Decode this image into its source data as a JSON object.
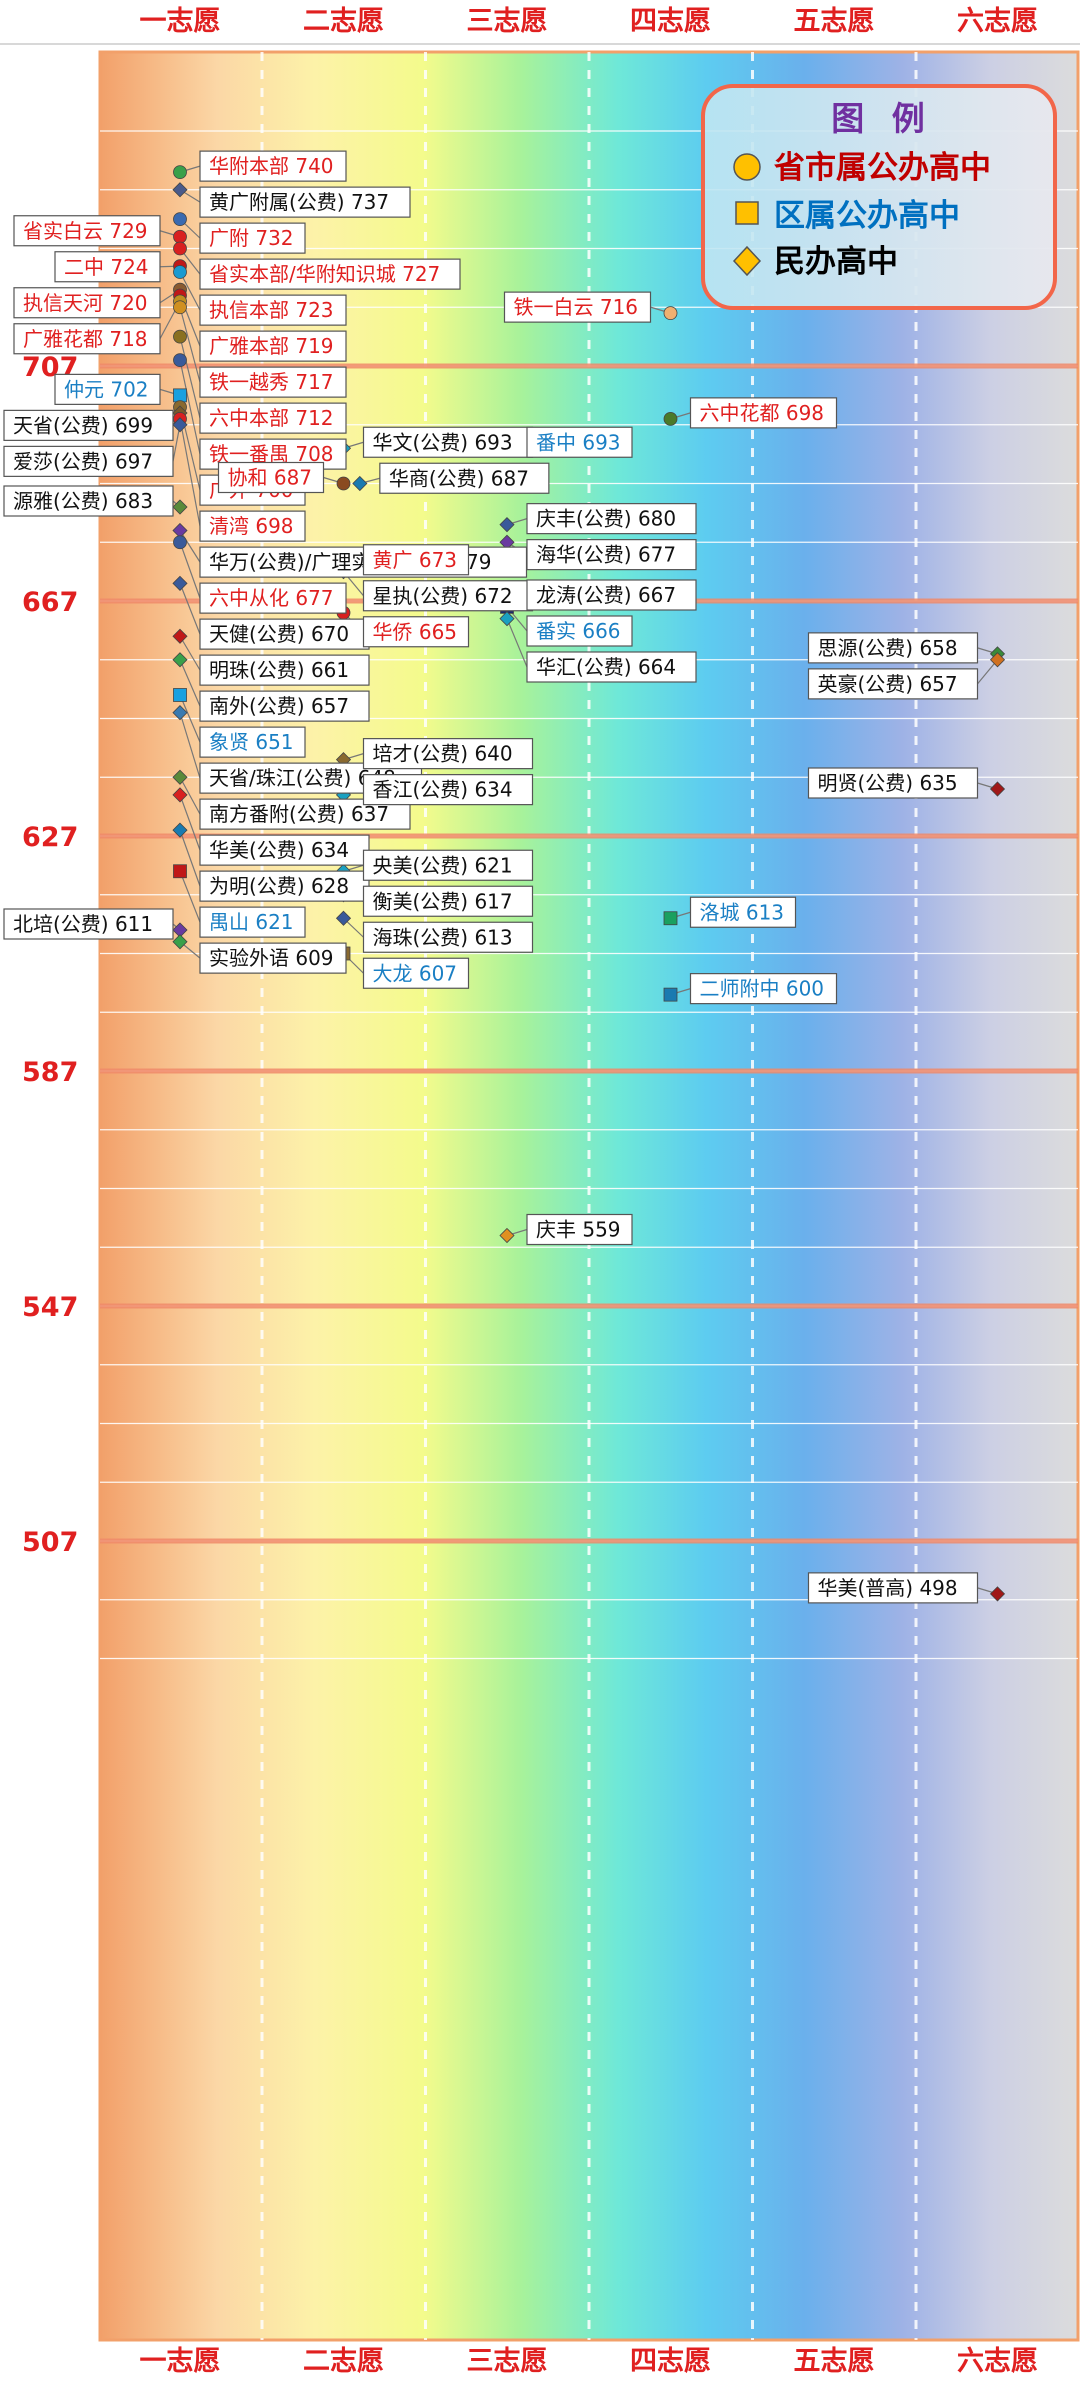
{
  "chart_data": {
    "type": "scatter",
    "title": "",
    "xlabel": "",
    "ylabel": "",
    "x_categories": [
      "一志愿",
      "二志愿",
      "三志愿",
      "四志愿",
      "五志愿",
      "六志愿"
    ],
    "y_ticks": [
      707,
      667,
      627,
      587,
      547,
      507
    ],
    "ylim": [
      480,
      750
    ],
    "grid": true,
    "legend": {
      "title": "图 例",
      "placement": "top-right",
      "entries": [
        {
          "label": "省市属公办高中",
          "shape": "circle",
          "color": "#c00000"
        },
        {
          "label": "区属公办高中",
          "shape": "square",
          "color": "#0070c0"
        },
        {
          "label": "民办高中",
          "shape": "diamond",
          "color": "#000000"
        }
      ]
    },
    "category_colors": {
      "circle": "#e02020",
      "square": "#1a7fc4",
      "diamond": "#111111"
    },
    "points": [
      {
        "name": "华附本部",
        "score": 740,
        "x": 1,
        "category": "circle",
        "label": "华附本部 740",
        "marker_color": "#3aa04a",
        "side": "right"
      },
      {
        "name": "黄广附属(公费)",
        "score": 737,
        "x": 1,
        "category": "diamond",
        "label": "黄广附属(公费) 737",
        "marker_color": "#4a5a8a",
        "side": "right"
      },
      {
        "name": "省实白云",
        "score": 729,
        "x": 1,
        "category": "circle",
        "label": "省实白云 729",
        "marker_color": "#d82020",
        "side": "left"
      },
      {
        "name": "广附",
        "score": 732,
        "x": 1,
        "category": "circle",
        "label": "广附 732",
        "marker_color": "#3a6ab0",
        "side": "right"
      },
      {
        "name": "省实本部/华附知识城",
        "score": 727,
        "x": 1,
        "category": "circle",
        "label": "省实本部/华附知识城 727",
        "marker_color": "#d82020",
        "side": "right"
      },
      {
        "name": "二中",
        "score": 724,
        "x": 1,
        "category": "circle",
        "label": "二中 724",
        "marker_color": "#c01818",
        "side": "left"
      },
      {
        "name": "执信本部",
        "score": 723,
        "x": 1,
        "category": "circle",
        "label": "执信本部 723",
        "marker_color": "#1a9ad0",
        "side": "right"
      },
      {
        "name": "执信天河",
        "score": 720,
        "x": 1,
        "category": "circle",
        "label": "执信天河 720",
        "marker_color": "#8a5a30",
        "side": "left"
      },
      {
        "name": "广雅本部",
        "score": 719,
        "x": 1,
        "category": "circle",
        "label": "广雅本部 719",
        "marker_color": "#c01818",
        "side": "right"
      },
      {
        "name": "广雅花都",
        "score": 718,
        "x": 1,
        "category": "circle",
        "label": "广雅花都 718",
        "marker_color": "#c09020",
        "side": "left"
      },
      {
        "name": "铁一越秀",
        "score": 717,
        "x": 1,
        "category": "circle",
        "label": "铁一越秀 717",
        "marker_color": "#d09020",
        "side": "right"
      },
      {
        "name": "铁一白云",
        "score": 716,
        "x": 4,
        "category": "circle",
        "label": "铁一白云 716",
        "marker_color": "#f0b070",
        "side": "left"
      },
      {
        "name": "六中本部",
        "score": 712,
        "x": 1,
        "category": "circle",
        "label": "六中本部 712",
        "marker_color": "#8a7020",
        "side": "right"
      },
      {
        "name": "铁一番禺",
        "score": 708,
        "x": 1,
        "category": "circle",
        "label": "铁一番禺 708",
        "marker_color": "#3a5a9a",
        "side": "right"
      },
      {
        "name": "仲元",
        "score": 702,
        "x": 1,
        "category": "square",
        "label": "仲元 702",
        "marker_color": "#1aa0e0",
        "side": "left"
      },
      {
        "name": "广外",
        "score": 700,
        "x": 1,
        "category": "circle",
        "label": "广外 700",
        "marker_color": "#8a6a30",
        "side": "right"
      },
      {
        "name": "天省(公费)",
        "score": 699,
        "x": 1,
        "category": "diamond",
        "label": "天省(公费) 699",
        "marker_color": "#7a5a2a",
        "side": "left"
      },
      {
        "name": "清湾",
        "score": 698,
        "x": 1,
        "category": "circle",
        "label": "清湾 698",
        "marker_color": "#d82020",
        "side": "right"
      },
      {
        "name": "六中花都",
        "score": 698,
        "x": 4,
        "category": "circle",
        "label": "六中花都 698",
        "marker_color": "#4a7a2a",
        "side": "right"
      },
      {
        "name": "爱莎(公费)",
        "score": 697,
        "x": 1,
        "category": "diamond",
        "label": "爱莎(公费) 697",
        "marker_color": "#3a5a9a",
        "side": "left"
      },
      {
        "name": "华文(公费)",
        "score": 693,
        "x": 2,
        "category": "diamond",
        "label": "华文(公费) 693",
        "marker_color": "#1aa0c0",
        "side": "right"
      },
      {
        "name": "番中",
        "score": 693,
        "x": 3,
        "category": "square",
        "label": "番中 693",
        "marker_color": "#1a2a6a",
        "side": "right"
      },
      {
        "name": "协和",
        "score": 687,
        "x": 2,
        "category": "circle",
        "label": "协和 687",
        "marker_color": "#8a4a20",
        "side": "left"
      },
      {
        "name": "华商(公费)",
        "score": 687,
        "x": 2.1,
        "category": "diamond",
        "label": "华商(公费) 687",
        "marker_color": "#1a7ab0",
        "side": "right"
      },
      {
        "name": "源雅(公费)",
        "score": 683,
        "x": 1,
        "category": "diamond",
        "label": "源雅(公费) 683",
        "marker_color": "#5a8a3a",
        "side": "left"
      },
      {
        "name": "庆丰(公费)",
        "score": 680,
        "x": 3,
        "category": "diamond",
        "label": "庆丰(公费) 680",
        "marker_color": "#3a5a9a",
        "side": "right"
      },
      {
        "name": "华万(公费)/广理实验(公费)",
        "score": 679,
        "x": 1,
        "category": "diamond",
        "label": "华万(公费)/广理实验(公费) 679",
        "marker_color": "#6a3aa0",
        "side": "right"
      },
      {
        "name": "六中从化",
        "score": 677,
        "x": 1,
        "category": "circle",
        "label": "六中从化 677",
        "marker_color": "#3a5a9a",
        "side": "right"
      },
      {
        "name": "海华(公费)",
        "score": 677,
        "x": 3,
        "category": "diamond",
        "label": "海华(公费) 677",
        "marker_color": "#6a3aa0",
        "side": "right"
      },
      {
        "name": "黄广",
        "score": 673,
        "x": 2,
        "category": "circle",
        "label": "黄广 673",
        "marker_color": "#1aa0c0",
        "side": "right"
      },
      {
        "name": "星执(公费)",
        "score": 672,
        "x": 2,
        "category": "diamond",
        "label": "星执(公费) 672",
        "marker_color": "#3a5a9a",
        "side": "right"
      },
      {
        "name": "天健(公费)",
        "score": 670,
        "x": 1,
        "category": "diamond",
        "label": "天健(公费) 670",
        "marker_color": "#3a5a9a",
        "side": "right"
      },
      {
        "name": "龙涛(公费)",
        "score": 667,
        "x": 3,
        "category": "diamond",
        "label": "龙涛(公费) 667",
        "marker_color": "#c01818",
        "side": "right"
      },
      {
        "name": "番实",
        "score": 666,
        "x": 3,
        "category": "square",
        "label": "番实 666",
        "marker_color": "#1a2a6a",
        "side": "right"
      },
      {
        "name": "华侨",
        "score": 665,
        "x": 2,
        "category": "circle",
        "label": "华侨 665",
        "marker_color": "#d82020",
        "side": "right"
      },
      {
        "name": "华汇(公费)",
        "score": 664,
        "x": 3,
        "category": "diamond",
        "label": "华汇(公费) 664",
        "marker_color": "#1aa0c0",
        "side": "right"
      },
      {
        "name": "明珠(公费)",
        "score": 661,
        "x": 1,
        "category": "diamond",
        "label": "明珠(公费) 661",
        "marker_color": "#c01818",
        "side": "right"
      },
      {
        "name": "思源(公费)",
        "score": 658,
        "x": 6,
        "category": "diamond",
        "label": "思源(公费) 658",
        "marker_color": "#3a8a3a",
        "side": "left"
      },
      {
        "name": "南外(公费)",
        "score": 657,
        "x": 1,
        "category": "diamond",
        "label": "南外(公费) 657",
        "marker_color": "#3aa04a",
        "side": "right"
      },
      {
        "name": "英豪(公费)",
        "score": 657,
        "x": 6,
        "category": "diamond",
        "label": "英豪(公费) 657",
        "marker_color": "#d07020",
        "side": "left"
      },
      {
        "name": "象贤",
        "score": 651,
        "x": 1,
        "category": "square",
        "label": "象贤 651",
        "marker_color": "#1aa0e0",
        "side": "right"
      },
      {
        "name": "天省/珠江(公费)",
        "score": 648,
        "x": 1,
        "category": "diamond",
        "label": "天省/珠江(公费) 648",
        "marker_color": "#3a7ab0",
        "side": "right"
      },
      {
        "name": "培才(公费)",
        "score": 640,
        "x": 2,
        "category": "diamond",
        "label": "培才(公费) 640",
        "marker_color": "#8a6a30",
        "side": "right"
      },
      {
        "name": "南方番附(公费)",
        "score": 637,
        "x": 1,
        "category": "diamond",
        "label": "南方番附(公费) 637",
        "marker_color": "#5a8a3a",
        "side": "right"
      },
      {
        "name": "明贤(公费)",
        "score": 635,
        "x": 6,
        "category": "diamond",
        "label": "明贤(公费) 635",
        "marker_color": "#a01818",
        "side": "left"
      },
      {
        "name": "华美(公费)",
        "score": 634,
        "x": 1,
        "category": "diamond",
        "label": "华美(公费) 634",
        "marker_color": "#d82020",
        "side": "right"
      },
      {
        "name": "香江(公费)",
        "score": 634,
        "x": 2,
        "category": "diamond",
        "label": "香江(公费) 634",
        "marker_color": "#1aa0c0",
        "side": "right"
      },
      {
        "name": "为明(公费)",
        "score": 628,
        "x": 1,
        "category": "diamond",
        "label": "为明(公费) 628",
        "marker_color": "#1a7ab0",
        "side": "right"
      },
      {
        "name": "禺山",
        "score": 621,
        "x": 1,
        "category": "square",
        "label": "禺山 621",
        "marker_color": "#c01818",
        "side": "right"
      },
      {
        "name": "央美(公费)",
        "score": 621,
        "x": 2,
        "category": "diamond",
        "label": "央美(公费) 621",
        "marker_color": "#1aa0c0",
        "side": "right"
      },
      {
        "name": "衡美(公费)",
        "score": 617,
        "x": 2,
        "category": "diamond",
        "label": "衡美(公费) 617",
        "marker_color": "#d82020",
        "side": "right"
      },
      {
        "name": "北培(公费)",
        "score": 611,
        "x": 1,
        "category": "diamond",
        "label": "北培(公费) 611",
        "marker_color": "#6a3aa0",
        "side": "left"
      },
      {
        "name": "海珠(公费)",
        "score": 613,
        "x": 2,
        "category": "diamond",
        "label": "海珠(公费) 613",
        "marker_color": "#3a5a9a",
        "side": "right"
      },
      {
        "name": "洛城",
        "score": 613,
        "x": 4,
        "category": "square",
        "label": "洛城 613",
        "marker_color": "#1aa060",
        "side": "right"
      },
      {
        "name": "实验外语",
        "score": 609,
        "x": 1,
        "category": "diamond",
        "label": "实验外语 609",
        "marker_color": "#3aa04a",
        "side": "right"
      },
      {
        "name": "大龙",
        "score": 607,
        "x": 2,
        "category": "square",
        "label": "大龙 607",
        "marker_color": "#8a6a30",
        "side": "right"
      },
      {
        "name": "二师附中",
        "score": 600,
        "x": 4,
        "category": "square",
        "label": "二师附中 600",
        "marker_color": "#1a7ab0",
        "side": "right"
      },
      {
        "name": "庆丰",
        "score": 559,
        "x": 3,
        "category": "diamond",
        "label": "庆丰 559",
        "marker_color": "#e09020",
        "side": "right"
      },
      {
        "name": "华美(普高)",
        "score": 498,
        "x": 6,
        "category": "diamond",
        "label": "华美(普高) 498",
        "marker_color": "#a01818",
        "side": "left"
      }
    ]
  }
}
